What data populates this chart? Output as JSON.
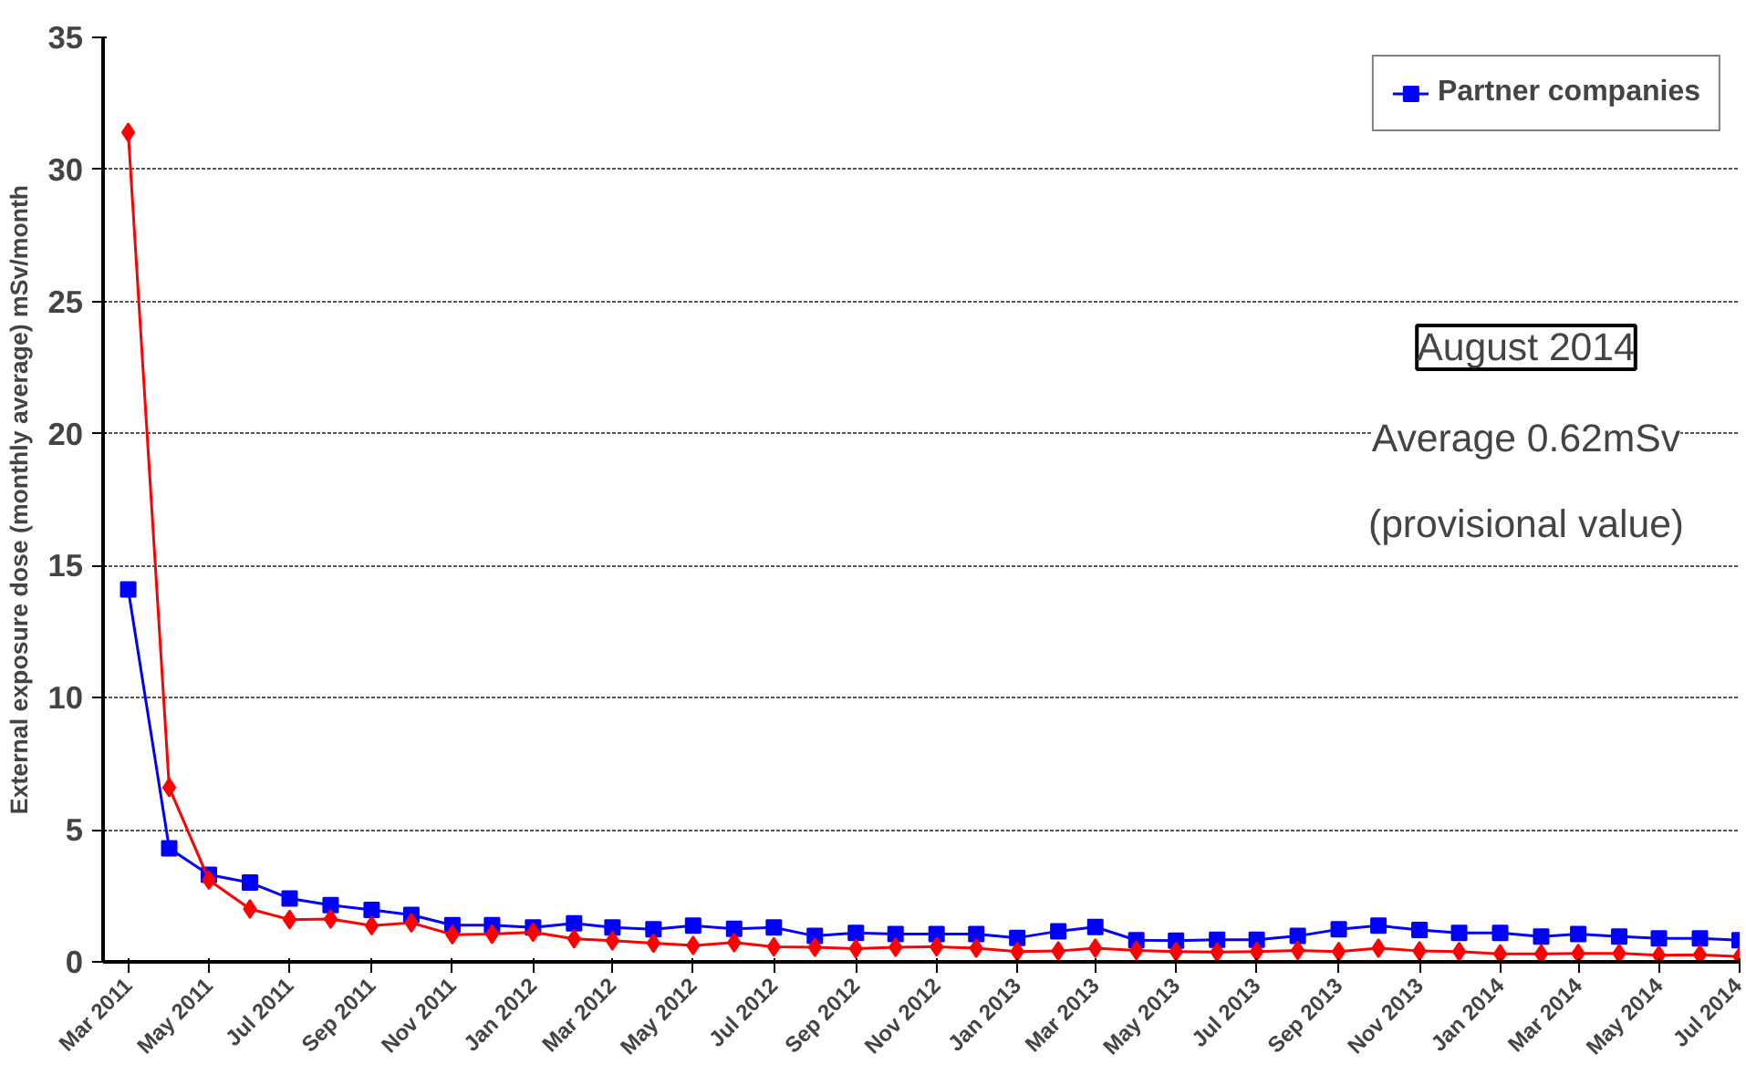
{
  "chart_data": {
    "type": "line",
    "ylabel": "External exposure dose (monthly average) mSv/month",
    "x": [
      "2011-03",
      "2011-04",
      "2011-05",
      "2011-06",
      "2011-07",
      "2011-08",
      "2011-09",
      "2011-10",
      "2011-11",
      "2011-12",
      "2012-01",
      "2012-02",
      "2012-03",
      "2012-04",
      "2012-05",
      "2012-06",
      "2012-07",
      "2012-08",
      "2012-09",
      "2012-10",
      "2012-11",
      "2012-12",
      "2013-01",
      "2013-02",
      "2013-03",
      "2013-04",
      "2013-05",
      "2013-06",
      "2013-07",
      "2013-08",
      "2013-09",
      "2013-10",
      "2013-11",
      "2013-12",
      "2014-01",
      "2014-02",
      "2014-03",
      "2014-04",
      "2014-05",
      "2014-06",
      "2014-07"
    ],
    "series": [
      {
        "color": "#ff0000",
        "marker": "diamond",
        "values": [
          31.4,
          6.6,
          3.1,
          2.0,
          1.6,
          1.62,
          1.37,
          1.48,
          1.03,
          1.05,
          1.12,
          0.87,
          0.8,
          0.71,
          0.62,
          0.73,
          0.57,
          0.55,
          0.5,
          0.55,
          0.57,
          0.52,
          0.39,
          0.41,
          0.52,
          0.43,
          0.39,
          0.37,
          0.39,
          0.43,
          0.39,
          0.52,
          0.41,
          0.39,
          0.3,
          0.3,
          0.32,
          0.32,
          0.25,
          0.27,
          0.2
        ]
      },
      {
        "name": "Partner companies",
        "color": "#0000ff",
        "marker": "square",
        "values": [
          14.1,
          4.3,
          3.3,
          3.0,
          2.4,
          2.15,
          1.97,
          1.78,
          1.39,
          1.39,
          1.3,
          1.46,
          1.3,
          1.23,
          1.37,
          1.25,
          1.3,
          0.98,
          1.1,
          1.05,
          1.05,
          1.05,
          0.91,
          1.16,
          1.32,
          0.82,
          0.8,
          0.84,
          0.84,
          0.98,
          1.23,
          1.37,
          1.21,
          1.1,
          1.1,
          0.96,
          1.05,
          0.96,
          0.89,
          0.89,
          0.82
        ]
      }
    ],
    "xlim": [
      "2011-02-10",
      "2014-07-01"
    ],
    "xticks": [
      {
        "value": "2011-03",
        "label": "Mar 2011"
      },
      {
        "value": "2011-05",
        "label": "May 2011"
      },
      {
        "value": "2011-07",
        "label": "Jul 2011"
      },
      {
        "value": "2011-09",
        "label": "Sep 2011"
      },
      {
        "value": "2011-11",
        "label": "Nov 2011"
      },
      {
        "value": "2012-01",
        "label": "Jan 2012"
      },
      {
        "value": "2012-03",
        "label": "Mar 2012"
      },
      {
        "value": "2012-05",
        "label": "May 2012"
      },
      {
        "value": "2012-07",
        "label": "Jul 2012"
      },
      {
        "value": "2012-09",
        "label": "Sep 2012"
      },
      {
        "value": "2012-11",
        "label": "Nov 2012"
      },
      {
        "value": "2013-01",
        "label": "Jan 2013"
      },
      {
        "value": "2013-03",
        "label": "Mar 2013"
      },
      {
        "value": "2013-05",
        "label": "May 2013"
      },
      {
        "value": "2013-07",
        "label": "Jul 2013"
      },
      {
        "value": "2013-09",
        "label": "Sep 2013"
      },
      {
        "value": "2013-11",
        "label": "Nov 2013"
      },
      {
        "value": "2014-01",
        "label": "Jan 2014"
      },
      {
        "value": "2014-03",
        "label": "Mar 2014"
      },
      {
        "value": "2014-05",
        "label": "May 2014"
      },
      {
        "value": "2014-07",
        "label": "Jul 2014"
      }
    ],
    "ylim": [
      0,
      35
    ],
    "yticks": [
      0,
      5,
      10,
      15,
      20,
      25,
      30,
      35
    ],
    "grid": "y",
    "legend": "top right",
    "line_style": "solid",
    "annotations": [
      "August 2014",
      "Average 0.62mSv",
      "(provisional value)"
    ]
  }
}
